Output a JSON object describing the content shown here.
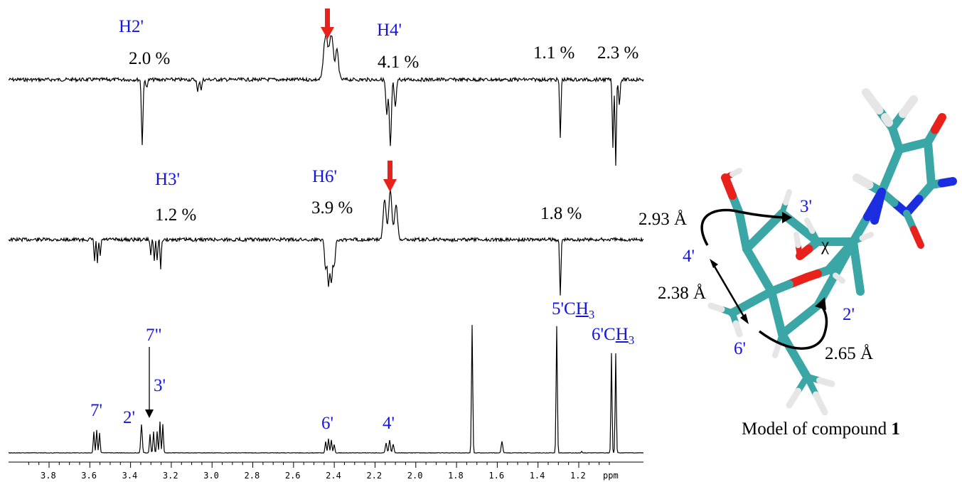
{
  "nmr": {
    "trace1": {
      "labels": [
        {
          "id": "h2",
          "text": "H2'"
        },
        {
          "id": "p1",
          "text": "2.0 %"
        },
        {
          "id": "h4",
          "text": "H4'"
        },
        {
          "id": "p2",
          "text": "4.1 %"
        },
        {
          "id": "p3",
          "text": "1.1 %"
        },
        {
          "id": "p4",
          "text": "2.3 %"
        }
      ]
    },
    "trace2": {
      "labels": [
        {
          "id": "h3",
          "text": "H3'"
        },
        {
          "id": "p5",
          "text": "1.2 %"
        },
        {
          "id": "h6",
          "text": "H6'"
        },
        {
          "id": "p6",
          "text": "3.9 %"
        },
        {
          "id": "p7",
          "text": "1.8 %"
        }
      ]
    },
    "trace3": {
      "labels": [
        {
          "id": "l7",
          "text": "7'"
        },
        {
          "id": "l2",
          "text": "2'"
        },
        {
          "id": "l7pp",
          "text": "7\""
        },
        {
          "id": "l3",
          "text": "3'"
        },
        {
          "id": "l6",
          "text": "6'"
        },
        {
          "id": "l4",
          "text": "4'"
        },
        {
          "id": "l5ch3",
          "text": "5'CH3"
        },
        {
          "id": "l6ch3",
          "text": "6'CH3"
        }
      ]
    },
    "axis": {
      "ticks": [
        "3.8",
        "3.6",
        "3.4",
        "3.2",
        "3.0",
        "2.8",
        "2.6",
        "2.4",
        "2.2",
        "2.0",
        "1.8",
        "1.6",
        "1.4",
        "1.2"
      ],
      "unit": "ppm"
    }
  },
  "model": {
    "labels": {
      "n3": "3'",
      "n4": "4'",
      "n2": "2'",
      "n6": "6'",
      "chi": "χ",
      "d1": "2.93 Å",
      "d2": "2.38 Å",
      "d3": "2.65 Å"
    },
    "caption_prefix": "Model of compound ",
    "caption_bold": "1"
  },
  "colors": {
    "label_blue": "#1414e6",
    "arrow_red": "#e8221a",
    "carbon": "#3aa6a6",
    "oxygen": "#e8221a",
    "nitrogen": "#1a2ee0",
    "hydrogen": "#e6e6e6"
  }
}
